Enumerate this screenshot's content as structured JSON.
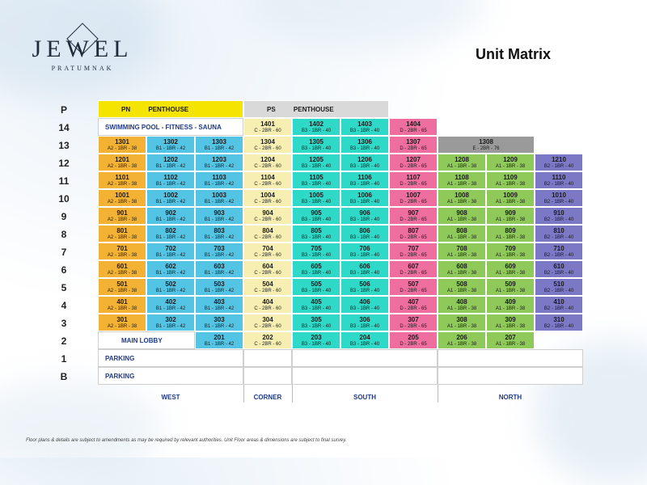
{
  "brand": {
    "name": "JEWEL",
    "sub": "PRATUMNAK"
  },
  "title": "Unit Matrix",
  "colors": {
    "A2": "#f3b233",
    "B1": "#54c4e5",
    "C": "#f7efb2",
    "B3": "#2fd9c8",
    "D": "#ee6e9f",
    "A1": "#8ec95a",
    "B2": "#7b79c6",
    "E": "#9a9a9a",
    "PN": "#f4e400",
    "PS": "#d9d9d9"
  },
  "row_labels": [
    "P",
    "14",
    "13",
    "12",
    "11",
    "10",
    "9",
    "8",
    "7",
    "6",
    "5",
    "4",
    "3",
    "2",
    "1",
    "B"
  ],
  "top": {
    "pn": {
      "code": "PN",
      "label": "PENTHOUSE"
    },
    "ps": {
      "code": "PS",
      "label": "PENTHOUSE"
    },
    "amenity": "SWIMMING POOL - FITNESS - SAUNA",
    "r14": [
      {
        "n": "1401",
        "t": "C - 2BR - 60",
        "c": "C"
      },
      {
        "n": "1402",
        "t": "B3 - 1BR - 40",
        "c": "B3"
      },
      {
        "n": "1403",
        "t": "B3 - 1BR - 40",
        "c": "B3"
      },
      {
        "n": "1404",
        "t": "D - 2BR - 65",
        "c": "D"
      }
    ],
    "r13": [
      {
        "n": "1301",
        "t": "A2 - 1BR - 38",
        "c": "A2"
      },
      {
        "n": "1302",
        "t": "B1 - 1BR - 42",
        "c": "B1"
      },
      {
        "n": "1303",
        "t": "B1 - 1BR - 42",
        "c": "B1"
      },
      {
        "n": "1304",
        "t": "C - 2BR - 60",
        "c": "C"
      },
      {
        "n": "1305",
        "t": "B3 - 1BR - 40",
        "c": "B3"
      },
      {
        "n": "1306",
        "t": "B3 - 1BR - 40",
        "c": "B3"
      },
      {
        "n": "1307",
        "t": "D - 2BR - 65",
        "c": "D"
      },
      {
        "n": "1308",
        "t": "E - 2BR - 76",
        "c": "E"
      }
    ]
  },
  "floors": [
    {
      "f": "12",
      "u": [
        [
          "1201",
          "A2 - 1BR - 38"
        ],
        [
          "1202",
          "B1 - 1BR - 42"
        ],
        [
          "1203",
          "B1 - 1BR - 42"
        ],
        [
          "1204",
          "C - 2BR - 60"
        ],
        [
          "1205",
          "B3 - 1BR - 40"
        ],
        [
          "1206",
          "B3 - 1BR - 40"
        ],
        [
          "1207",
          "D - 2BR - 65"
        ],
        [
          "1208",
          "A1 - 1BR - 38"
        ],
        [
          "1209",
          "A1 - 1BR - 38"
        ],
        [
          "1210",
          "B2 - 1BR - 40"
        ]
      ]
    },
    {
      "f": "11",
      "u": [
        [
          "1101",
          "A2 - 1BR - 38"
        ],
        [
          "1102",
          "B1 - 1BR - 42"
        ],
        [
          "1103",
          "B1 - 1BR - 42"
        ],
        [
          "1104",
          "C - 2BR - 60"
        ],
        [
          "1105",
          "B3 - 1BR - 40"
        ],
        [
          "1106",
          "B3 - 1BR - 40"
        ],
        [
          "1107",
          "D - 2BR - 65"
        ],
        [
          "1108",
          "A1 - 1BR - 38"
        ],
        [
          "1109",
          "A1 - 1BR - 38"
        ],
        [
          "1110",
          "B2 - 1BR - 40"
        ]
      ]
    },
    {
      "f": "10",
      "u": [
        [
          "1001",
          "A2 - 1BR - 38"
        ],
        [
          "1002",
          "B1 - 1BR - 42"
        ],
        [
          "1003",
          "B1 - 1BR - 42"
        ],
        [
          "1004",
          "C - 2BR - 60"
        ],
        [
          "1005",
          "B3 - 1BR - 40"
        ],
        [
          "1006",
          "B3 - 1BR - 40"
        ],
        [
          "1007",
          "D - 2BR - 65"
        ],
        [
          "1008",
          "A1 - 1BR - 38"
        ],
        [
          "1009",
          "A1 - 1BR - 38"
        ],
        [
          "1010",
          "B2 - 1BR - 40"
        ]
      ]
    },
    {
      "f": "9",
      "u": [
        [
          "901",
          "A2 - 1BR - 38"
        ],
        [
          "902",
          "B1 - 1BR - 42"
        ],
        [
          "903",
          "B1 - 1BR - 42"
        ],
        [
          "904",
          "C - 2BR - 60"
        ],
        [
          "905",
          "B3 - 1BR - 40"
        ],
        [
          "906",
          "B3 - 1BR - 40"
        ],
        [
          "907",
          "D - 2BR - 65"
        ],
        [
          "908",
          "A1 - 1BR - 38"
        ],
        [
          "909",
          "A1 - 1BR - 38"
        ],
        [
          "910",
          "B2 - 1BR - 40"
        ]
      ]
    },
    {
      "f": "8",
      "u": [
        [
          "801",
          "A2 - 1BR - 38"
        ],
        [
          "802",
          "B1 - 1BR - 42"
        ],
        [
          "803",
          "B1 - 1BR - 42"
        ],
        [
          "804",
          "C - 2BR - 60"
        ],
        [
          "805",
          "B3 - 1BR - 40"
        ],
        [
          "806",
          "B3 - 1BR - 40"
        ],
        [
          "807",
          "D - 2BR - 65"
        ],
        [
          "808",
          "A1 - 1BR - 38"
        ],
        [
          "809",
          "A1 - 1BR - 38"
        ],
        [
          "810",
          "B2 - 1BR - 40"
        ]
      ]
    },
    {
      "f": "7",
      "u": [
        [
          "701",
          "A2 - 1BR - 38"
        ],
        [
          "702",
          "B1 - 1BR - 42"
        ],
        [
          "703",
          "B1 - 1BR - 42"
        ],
        [
          "704",
          "C - 2BR - 60"
        ],
        [
          "705",
          "B3 - 1BR - 40"
        ],
        [
          "706",
          "B3 - 1BR - 40"
        ],
        [
          "707",
          "D - 2BR - 65"
        ],
        [
          "708",
          "A1 - 1BR - 38"
        ],
        [
          "709",
          "A1 - 1BR - 38"
        ],
        [
          "710",
          "B2 - 1BR - 40"
        ]
      ]
    },
    {
      "f": "6",
      "u": [
        [
          "601",
          "A2 - 1BR - 38"
        ],
        [
          "602",
          "B1 - 1BR - 42"
        ],
        [
          "603",
          "B1 - 1BR - 42"
        ],
        [
          "604",
          "C - 2BR - 60"
        ],
        [
          "605",
          "B3 - 1BR - 40"
        ],
        [
          "606",
          "B3 - 1BR - 40"
        ],
        [
          "607",
          "D - 2BR - 65"
        ],
        [
          "608",
          "A1 - 1BR - 38"
        ],
        [
          "609",
          "A1 - 1BR - 38"
        ],
        [
          "610",
          "B2 - 1BR - 40"
        ]
      ]
    },
    {
      "f": "5",
      "u": [
        [
          "501",
          "A2 - 1BR - 38"
        ],
        [
          "502",
          "B1 - 1BR - 42"
        ],
        [
          "503",
          "B1 - 1BR - 42"
        ],
        [
          "504",
          "C - 2BR - 60"
        ],
        [
          "505",
          "B3 - 1BR - 40"
        ],
        [
          "506",
          "B3 - 1BR - 40"
        ],
        [
          "507",
          "D - 2BR - 65"
        ],
        [
          "508",
          "A1 - 1BR - 38"
        ],
        [
          "509",
          "A1 - 1BR - 38"
        ],
        [
          "510",
          "B2 - 1BR - 40"
        ]
      ]
    },
    {
      "f": "4",
      "u": [
        [
          "401",
          "A2 - 1BR - 38"
        ],
        [
          "402",
          "B1 - 1BR - 42"
        ],
        [
          "403",
          "B1 - 1BR - 42"
        ],
        [
          "404",
          "C - 2BR - 60"
        ],
        [
          "405",
          "B3 - 1BR - 40"
        ],
        [
          "406",
          "B3 - 1BR - 40"
        ],
        [
          "407",
          "D - 2BR - 65"
        ],
        [
          "408",
          "A1 - 1BR - 38"
        ],
        [
          "409",
          "A1 - 1BR - 38"
        ],
        [
          "410",
          "B2 - 1BR - 40"
        ]
      ]
    },
    {
      "f": "3",
      "u": [
        [
          "301",
          "A2 - 1BR - 38"
        ],
        [
          "302",
          "B1 - 1BR - 42"
        ],
        [
          "303",
          "B1 - 1BR - 42"
        ],
        [
          "304",
          "C - 2BR - 60"
        ],
        [
          "305",
          "B3 - 1BR - 40"
        ],
        [
          "306",
          "B3 - 1BR - 40"
        ],
        [
          "307",
          "D - 2BR - 65"
        ],
        [
          "308",
          "A1 - 1BR - 38"
        ],
        [
          "309",
          "A1 - 1BR - 38"
        ],
        [
          "310",
          "B2 - 1BR - 40"
        ]
      ]
    }
  ],
  "unit_types": [
    "A2",
    "B1",
    "B1",
    "C",
    "B3",
    "B3",
    "D",
    "A1",
    "A1",
    "B2"
  ],
  "floor2": {
    "lobby": "MAIN LOBBY",
    "units": [
      {
        "n": "201",
        "t": "B1 - 1BR - 42",
        "c": "B1",
        "col": 2
      },
      {
        "n": "202",
        "t": "C - 2BR - 60",
        "c": "C",
        "col": 3
      },
      {
        "n": "203",
        "t": "B3 - 1BR - 40",
        "c": "B3",
        "col": 4
      },
      {
        "n": "204",
        "t": "B3 - 1BR - 40",
        "c": "B3",
        "col": 5
      },
      {
        "n": "205",
        "t": "D - 2BR - 65",
        "c": "D",
        "col": 6
      },
      {
        "n": "206",
        "t": "A1 - 1BR - 38",
        "c": "A1",
        "col": 7
      },
      {
        "n": "207",
        "t": "A1 - 1BR - 38",
        "c": "A1",
        "col": 8
      }
    ]
  },
  "parking": [
    "PARKING",
    "PARKING"
  ],
  "zones": [
    "WEST",
    "CORNER",
    "SOUTH",
    "NORTH"
  ],
  "footnote": "Floor plans & details are subject to amendments as may be required by relevant authorities. Unit Floor areas & dimensions are subject to final survey."
}
